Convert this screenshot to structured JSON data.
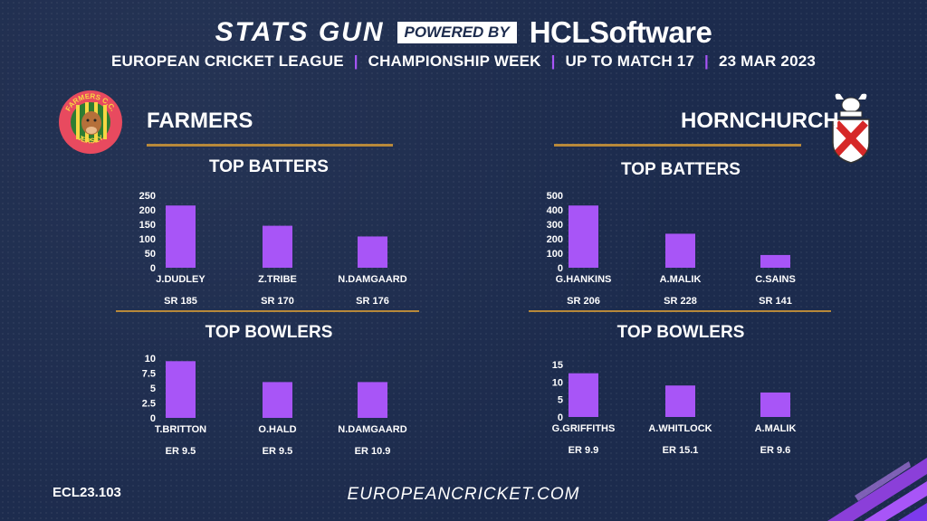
{
  "header": {
    "brand": "STATS GUN",
    "powered_by": "POWERED BY",
    "sponsor": "HCLSoftware",
    "subtitle_parts": [
      "EUROPEAN CRICKET LEAGUE",
      "CHAMPIONSHIP WEEK",
      "UP TO MATCH  17",
      "23 MAR 2023"
    ],
    "separator": "|"
  },
  "teams": {
    "left": {
      "name": "FARMERS",
      "logo": {
        "top_text": "FARMERS C.C.",
        "bottom_text": "JERSEY"
      }
    },
    "right": {
      "name": "HORNCHURCH"
    }
  },
  "footer": {
    "code": "ECL23.103",
    "website": "EUROPEANCRICKET.COM"
  },
  "colors": {
    "bar": "#a855f7",
    "accent": "#a855f7",
    "rule": "#b8893a",
    "background": "#1c2b4d"
  },
  "chart_data": [
    {
      "type": "bar",
      "title": "TOP BATTERS",
      "team": "FARMERS",
      "categories": [
        "J.DUDLEY",
        "Z.TRIBE",
        "N.DAMGAARD"
      ],
      "values": [
        215,
        145,
        108
      ],
      "sublabels": [
        "SR 185",
        "SR 170",
        "SR 176"
      ],
      "yticks": [
        0,
        50,
        100,
        150,
        200,
        250
      ],
      "ylim": [
        0,
        250
      ]
    },
    {
      "type": "bar",
      "title": "TOP BOWLERS",
      "team": "FARMERS",
      "categories": [
        "T.BRITTON",
        "O.HALD",
        "N.DAMGAARD"
      ],
      "values": [
        9.5,
        6,
        6
      ],
      "sublabels": [
        "ER  9.5",
        "ER 9.5",
        "ER 10.9"
      ],
      "yticks": [
        0,
        2.5,
        5,
        7.5,
        10
      ],
      "ylim": [
        0,
        10
      ]
    },
    {
      "type": "bar",
      "title": "TOP BATTERS",
      "team": "HORNCHURCH",
      "categories": [
        "G.HANKINS",
        "A.MALIK",
        "C.SAINS"
      ],
      "values": [
        430,
        235,
        88
      ],
      "sublabels": [
        "SR 206",
        "SR 228",
        "SR 141"
      ],
      "yticks": [
        0,
        100,
        200,
        300,
        400,
        500
      ],
      "ylim": [
        0,
        500
      ]
    },
    {
      "type": "bar",
      "title": "TOP BOWLERS",
      "team": "HORNCHURCH",
      "categories": [
        "G.GRIFFITHS",
        "A.WHITLOCK",
        "A.MALIK"
      ],
      "values": [
        12.5,
        9,
        7
      ],
      "sublabels": [
        "ER 9.9",
        "ER 15.1",
        "ER 9.6"
      ],
      "yticks": [
        0,
        5,
        10,
        15
      ],
      "ylim": [
        0,
        15
      ]
    }
  ]
}
